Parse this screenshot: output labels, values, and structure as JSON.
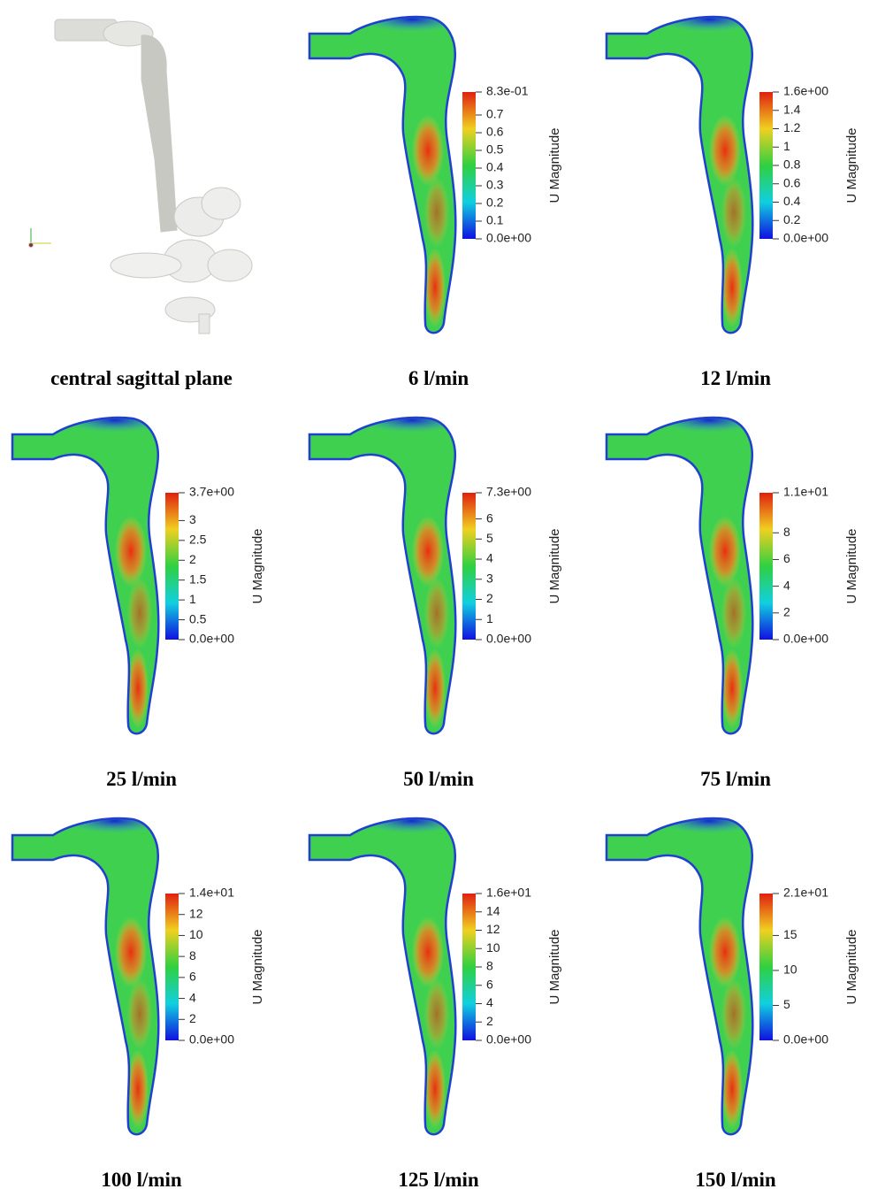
{
  "panels": [
    {
      "caption": "central sagittal plane"
    },
    {
      "caption": "6 l/min",
      "colorbar": {
        "title": "U Magnitude",
        "range": [
          0,
          0.83
        ],
        "ticks": [
          {
            "value": 0,
            "label": "0.0e+00"
          },
          0.1,
          0.2,
          0.3,
          0.4,
          0.5,
          0.6,
          0.7,
          {
            "value": 0.83,
            "label": "8.3e-01"
          }
        ]
      }
    },
    {
      "caption": "12 l/min",
      "colorbar": {
        "title": "U Magnitude",
        "range": [
          0,
          1.6
        ],
        "ticks": [
          {
            "value": 0,
            "label": "0.0e+00"
          },
          0.2,
          0.4,
          0.6,
          0.8,
          1,
          1.2,
          1.4,
          {
            "value": 1.6,
            "label": "1.6e+00"
          }
        ]
      }
    },
    {
      "caption": "25 l/min",
      "colorbar": {
        "title": "U Magnitude",
        "range": [
          0,
          3.7
        ],
        "ticks": [
          {
            "value": 0,
            "label": "0.0e+00"
          },
          0.5,
          1,
          1.5,
          2,
          2.5,
          3,
          {
            "value": 3.7,
            "label": "3.7e+00"
          }
        ]
      }
    },
    {
      "caption": "50 l/min",
      "colorbar": {
        "title": "U Magnitude",
        "range": [
          0,
          7.3
        ],
        "ticks": [
          {
            "value": 0,
            "label": "0.0e+00"
          },
          1,
          2,
          3,
          4,
          5,
          6,
          {
            "value": 7.3,
            "label": "7.3e+00"
          }
        ]
      }
    },
    {
      "caption": "75 l/min",
      "colorbar": {
        "title": "U Magnitude",
        "range": [
          0,
          11
        ],
        "ticks": [
          {
            "value": 0,
            "label": "0.0e+00"
          },
          2,
          4,
          6,
          8,
          {
            "value": 11,
            "label": "1.1e+01"
          }
        ]
      }
    },
    {
      "caption": "100 l/min",
      "colorbar": {
        "title": "U Magnitude",
        "range": [
          0,
          14
        ],
        "ticks": [
          {
            "value": 0,
            "label": "0.0e+00"
          },
          2,
          4,
          6,
          8,
          10,
          12,
          {
            "value": 14,
            "label": "1.4e+01"
          }
        ]
      }
    },
    {
      "caption": "125 l/min",
      "colorbar": {
        "title": "U Magnitude",
        "range": [
          0,
          16
        ],
        "ticks": [
          {
            "value": 0,
            "label": "0.0e+00"
          },
          2,
          4,
          6,
          8,
          10,
          12,
          14,
          {
            "value": 16,
            "label": "1.6e+01"
          }
        ]
      }
    },
    {
      "caption": "150 l/min",
      "colorbar": {
        "title": "U Magnitude",
        "range": [
          0,
          21
        ],
        "ticks": [
          {
            "value": 0,
            "label": "0.0e+00"
          },
          5,
          10,
          15,
          {
            "value": 21,
            "label": "2.1e+01"
          }
        ]
      }
    }
  ]
}
